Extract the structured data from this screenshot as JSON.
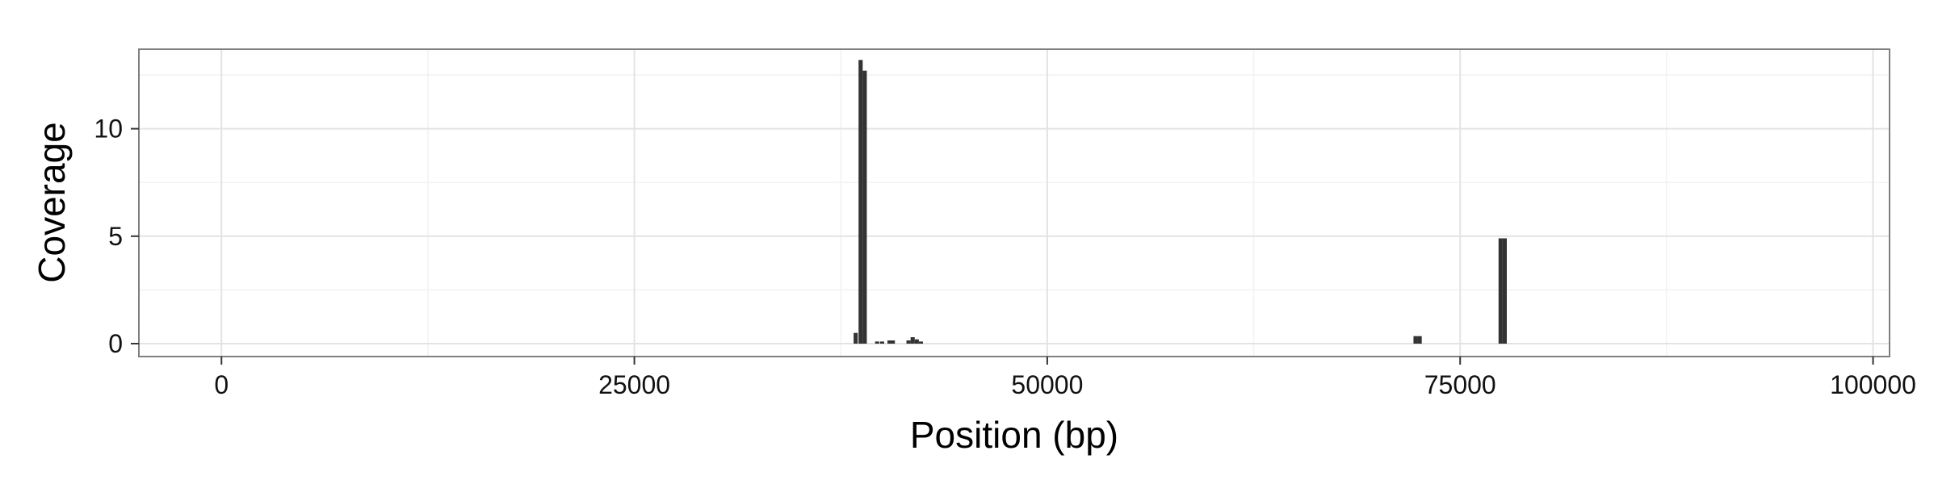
{
  "chart_data": {
    "type": "bar",
    "title": "",
    "xlabel": "Position (bp)",
    "ylabel": "Coverage",
    "xlim": [
      -5000,
      101000
    ],
    "ylim": [
      -0.6,
      13.7
    ],
    "x_ticks": [
      0,
      25000,
      50000,
      75000,
      100000
    ],
    "x_tick_labels": [
      "0",
      "25000",
      "50000",
      "75000",
      "100000"
    ],
    "x_minor_ticks": [
      12500,
      37500,
      62500,
      87500
    ],
    "y_ticks": [
      0,
      5,
      10
    ],
    "y_tick_labels": [
      "0",
      "5",
      "10"
    ],
    "y_minor_ticks": [
      2.5,
      7.5,
      12.5
    ],
    "grid": true,
    "bar_color": "#333333",
    "bar_width": 250,
    "bars": [
      {
        "x": 38400,
        "y": 0.5
      },
      {
        "x": 38700,
        "y": 13.2
      },
      {
        "x": 38950,
        "y": 12.7
      },
      {
        "x": 39700,
        "y": 0.1
      },
      {
        "x": 40000,
        "y": 0.1
      },
      {
        "x": 40450,
        "y": 0.15
      },
      {
        "x": 40650,
        "y": 0.15
      },
      {
        "x": 41600,
        "y": 0.15
      },
      {
        "x": 41850,
        "y": 0.3
      },
      {
        "x": 42100,
        "y": 0.2
      },
      {
        "x": 42350,
        "y": 0.1
      },
      {
        "x": 72300,
        "y": 0.35
      },
      {
        "x": 72550,
        "y": 0.35
      },
      {
        "x": 77450,
        "y": 4.9
      },
      {
        "x": 77700,
        "y": 4.9
      }
    ]
  }
}
